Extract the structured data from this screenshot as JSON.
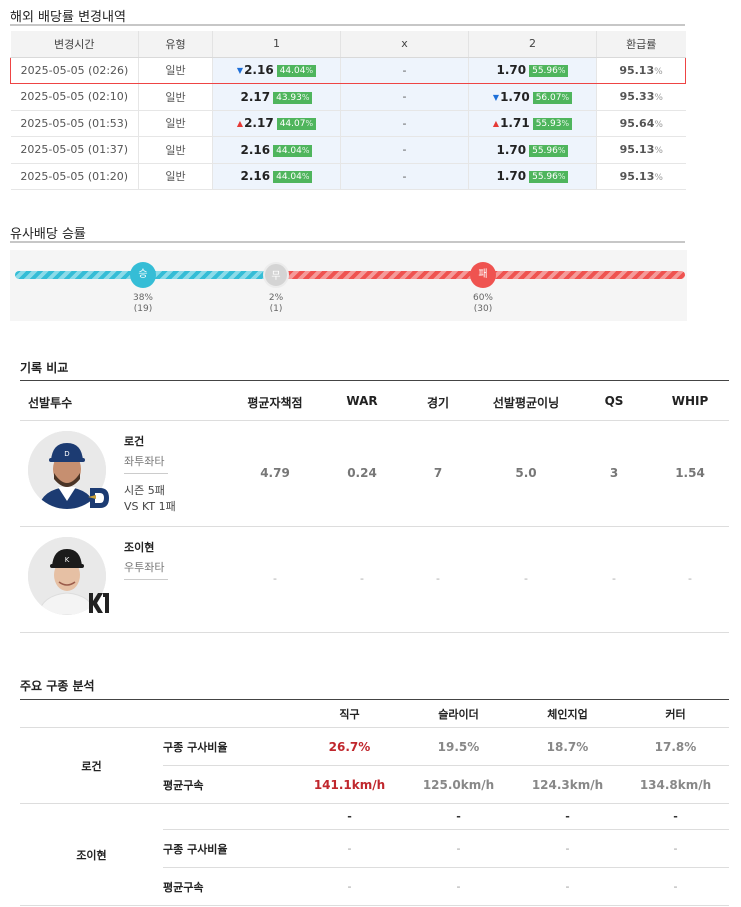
{
  "odds_section": {
    "title": "해외 배당률 변경내역",
    "headers": [
      "변경시간",
      "유형",
      "1",
      "x",
      "2",
      "환급률"
    ],
    "rows": [
      {
        "time": "2025-05-05 (02:26)",
        "type": "일반",
        "o1": "2.16",
        "p1": "44.04",
        "a1": "dn",
        "ox": "-",
        "o2": "1.70",
        "p2": "55.96",
        "a2": "",
        "payout": "95.13",
        "selected": true
      },
      {
        "time": "2025-05-05 (02:10)",
        "type": "일반",
        "o1": "2.17",
        "p1": "43.93",
        "a1": "",
        "ox": "-",
        "o2": "1.70",
        "p2": "56.07",
        "a2": "dn",
        "payout": "95.33",
        "selected": false
      },
      {
        "time": "2025-05-05 (01:53)",
        "type": "일반",
        "o1": "2.17",
        "p1": "44.07",
        "a1": "up",
        "ox": "-",
        "o2": "1.71",
        "p2": "55.93",
        "a2": "up",
        "payout": "95.64",
        "selected": false
      },
      {
        "time": "2025-05-05 (01:37)",
        "type": "일반",
        "o1": "2.16",
        "p1": "44.04",
        "a1": "",
        "ox": "-",
        "o2": "1.70",
        "p2": "55.96",
        "a2": "",
        "payout": "95.13",
        "selected": false
      },
      {
        "time": "2025-05-05 (01:20)",
        "type": "일반",
        "o1": "2.16",
        "p1": "44.04",
        "a1": "",
        "ox": "-",
        "o2": "1.70",
        "p2": "55.96",
        "a2": "",
        "payout": "95.13",
        "selected": false
      }
    ],
    "pct_symbol": "%"
  },
  "winrate": {
    "title": "유사배당 승률",
    "win": {
      "label": "승",
      "pct": "38%",
      "count": "(19)",
      "fraction": 0.38,
      "color": "#35bdd6"
    },
    "draw": {
      "label": "무",
      "pct": "2%",
      "count": "(1)",
      "fraction": 0.02,
      "color": "#cfcfcf"
    },
    "loss": {
      "label": "패",
      "pct": "60%",
      "count": "(30)",
      "fraction": 0.6,
      "color": "#ef5350"
    }
  },
  "record": {
    "title": "기록 비교",
    "headers": [
      "선발투수",
      "평균자책점",
      "WAR",
      "경기",
      "선발평균이닝",
      "QS",
      "WHIP"
    ],
    "pitchers": [
      {
        "name": "로건",
        "hand": "좌투좌타",
        "season": "시즌 5패",
        "vs": "VS KT 1패",
        "era": "4.79",
        "war": "0.24",
        "games": "7",
        "avg_inn": "5.0",
        "qs": "3",
        "whip": "1.54"
      },
      {
        "name": "조이현",
        "hand": "우투좌타",
        "season": "",
        "vs": "",
        "era": "-",
        "war": "-",
        "games": "-",
        "avg_inn": "-",
        "qs": "-",
        "whip": "-"
      }
    ]
  },
  "pitch": {
    "title": "주요 구종 분석",
    "types": [
      "직구",
      "슬라이더",
      "체인지업",
      "커터"
    ],
    "logan": {
      "name": "로건",
      "ratio_label": "구종 구사비율",
      "ratio": [
        "26.7%",
        "19.5%",
        "18.7%",
        "17.8%"
      ],
      "speed_label": "평균구속",
      "speed": [
        "141.1km/h",
        "125.0km/h",
        "124.3km/h",
        "134.8km/h"
      ]
    },
    "jo": {
      "name": "조이현",
      "types": [
        "-",
        "-",
        "-",
        "-"
      ],
      "ratio_label": "구종 구사비율",
      "ratio": [
        "-",
        "-",
        "-",
        "-"
      ],
      "speed_label": "평균구속",
      "speed": [
        "-",
        "-",
        "-",
        "-"
      ]
    }
  }
}
